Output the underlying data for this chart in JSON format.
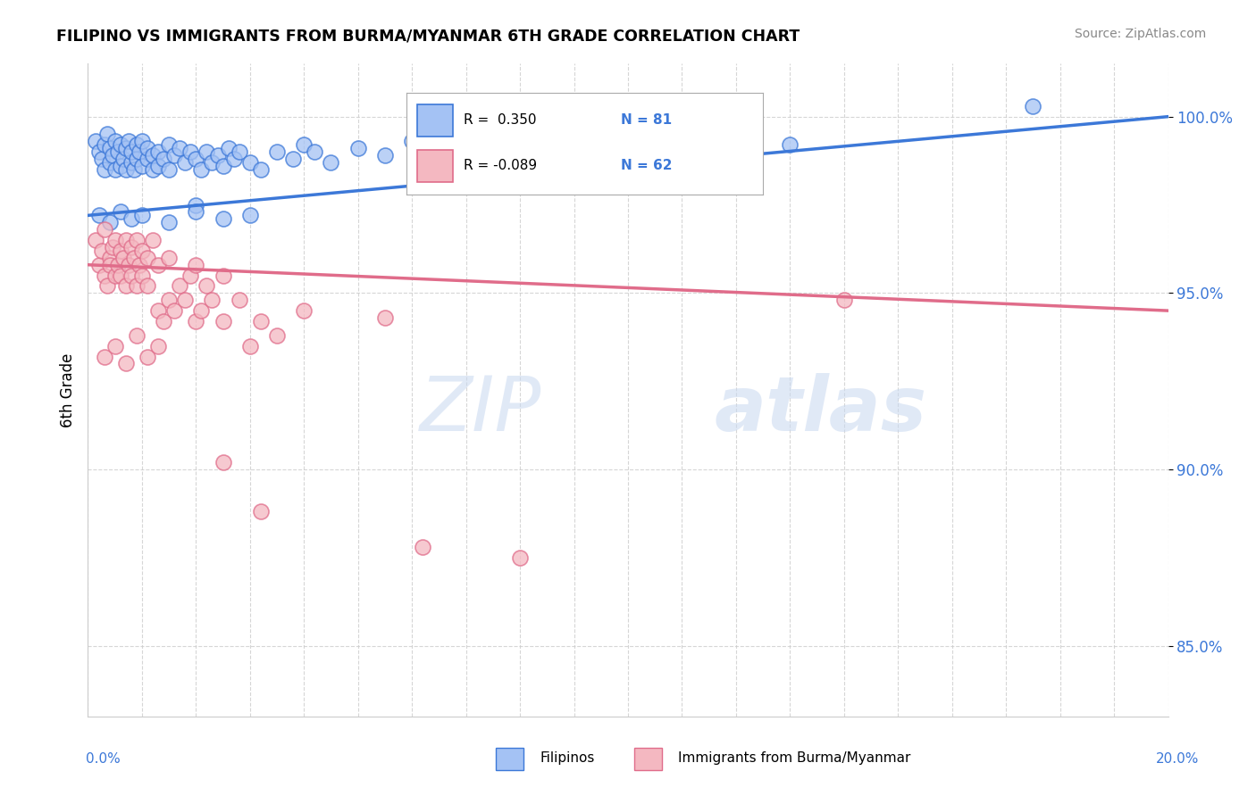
{
  "title": "FILIPINO VS IMMIGRANTS FROM BURMA/MYANMAR 6TH GRADE CORRELATION CHART",
  "source_text": "Source: ZipAtlas.com",
  "ylabel": "6th Grade",
  "xlim": [
    0.0,
    20.0
  ],
  "ylim": [
    83.0,
    101.5
  ],
  "yticks": [
    85.0,
    90.0,
    95.0,
    100.0
  ],
  "ytick_labels": [
    "85.0%",
    "90.0%",
    "95.0%",
    "100.0%"
  ],
  "legend_blue_label": "Filipinos",
  "legend_pink_label": "Immigrants from Burma/Myanmar",
  "blue_R": 0.35,
  "blue_N": 81,
  "pink_R": -0.089,
  "pink_N": 62,
  "blue_color": "#a4c2f4",
  "pink_color": "#f4b8c1",
  "blue_edge_color": "#3c78d8",
  "pink_edge_color": "#e06c8a",
  "blue_line_color": "#3c78d8",
  "pink_line_color": "#e06c8a",
  "tick_label_color": "#3c78d8",
  "blue_scatter": [
    [
      0.15,
      99.3
    ],
    [
      0.2,
      99.0
    ],
    [
      0.25,
      98.8
    ],
    [
      0.3,
      98.5
    ],
    [
      0.3,
      99.2
    ],
    [
      0.35,
      99.5
    ],
    [
      0.4,
      98.7
    ],
    [
      0.4,
      99.1
    ],
    [
      0.45,
      98.9
    ],
    [
      0.5,
      99.3
    ],
    [
      0.5,
      98.5
    ],
    [
      0.55,
      99.0
    ],
    [
      0.6,
      98.6
    ],
    [
      0.6,
      99.2
    ],
    [
      0.65,
      98.8
    ],
    [
      0.7,
      99.1
    ],
    [
      0.7,
      98.5
    ],
    [
      0.75,
      99.3
    ],
    [
      0.8,
      98.7
    ],
    [
      0.8,
      99.0
    ],
    [
      0.85,
      98.5
    ],
    [
      0.9,
      99.2
    ],
    [
      0.9,
      98.8
    ],
    [
      0.95,
      99.0
    ],
    [
      1.0,
      98.6
    ],
    [
      1.0,
      99.3
    ],
    [
      1.1,
      98.8
    ],
    [
      1.1,
      99.1
    ],
    [
      1.2,
      98.5
    ],
    [
      1.2,
      98.9
    ],
    [
      1.3,
      99.0
    ],
    [
      1.3,
      98.6
    ],
    [
      1.4,
      98.8
    ],
    [
      1.5,
      99.2
    ],
    [
      1.5,
      98.5
    ],
    [
      1.6,
      98.9
    ],
    [
      1.7,
      99.1
    ],
    [
      1.8,
      98.7
    ],
    [
      1.9,
      99.0
    ],
    [
      2.0,
      98.8
    ],
    [
      2.0,
      97.5
    ],
    [
      2.1,
      98.5
    ],
    [
      2.2,
      99.0
    ],
    [
      2.3,
      98.7
    ],
    [
      2.4,
      98.9
    ],
    [
      2.5,
      98.6
    ],
    [
      2.6,
      99.1
    ],
    [
      2.7,
      98.8
    ],
    [
      2.8,
      99.0
    ],
    [
      3.0,
      98.7
    ],
    [
      3.2,
      98.5
    ],
    [
      3.5,
      99.0
    ],
    [
      3.8,
      98.8
    ],
    [
      4.0,
      99.2
    ],
    [
      4.2,
      99.0
    ],
    [
      4.5,
      98.7
    ],
    [
      5.0,
      99.1
    ],
    [
      5.5,
      98.9
    ],
    [
      6.0,
      99.3
    ],
    [
      6.5,
      99.0
    ],
    [
      7.0,
      99.2
    ],
    [
      7.5,
      98.8
    ],
    [
      8.0,
      99.1
    ],
    [
      8.5,
      99.3
    ],
    [
      9.0,
      99.0
    ],
    [
      9.5,
      99.2
    ],
    [
      10.0,
      99.5
    ],
    [
      10.5,
      99.1
    ],
    [
      11.0,
      99.3
    ],
    [
      12.0,
      99.0
    ],
    [
      13.0,
      99.2
    ],
    [
      0.2,
      97.2
    ],
    [
      0.4,
      97.0
    ],
    [
      0.6,
      97.3
    ],
    [
      0.8,
      97.1
    ],
    [
      1.0,
      97.2
    ],
    [
      1.5,
      97.0
    ],
    [
      2.0,
      97.3
    ],
    [
      2.5,
      97.1
    ],
    [
      3.0,
      97.2
    ],
    [
      17.5,
      100.3
    ]
  ],
  "pink_scatter": [
    [
      0.15,
      96.5
    ],
    [
      0.2,
      95.8
    ],
    [
      0.25,
      96.2
    ],
    [
      0.3,
      95.5
    ],
    [
      0.3,
      96.8
    ],
    [
      0.35,
      95.2
    ],
    [
      0.4,
      96.0
    ],
    [
      0.4,
      95.8
    ],
    [
      0.45,
      96.3
    ],
    [
      0.5,
      95.5
    ],
    [
      0.5,
      96.5
    ],
    [
      0.55,
      95.8
    ],
    [
      0.6,
      96.2
    ],
    [
      0.6,
      95.5
    ],
    [
      0.65,
      96.0
    ],
    [
      0.7,
      95.2
    ],
    [
      0.7,
      96.5
    ],
    [
      0.75,
      95.8
    ],
    [
      0.8,
      96.3
    ],
    [
      0.8,
      95.5
    ],
    [
      0.85,
      96.0
    ],
    [
      0.9,
      95.2
    ],
    [
      0.9,
      96.5
    ],
    [
      0.95,
      95.8
    ],
    [
      1.0,
      96.2
    ],
    [
      1.0,
      95.5
    ],
    [
      1.1,
      96.0
    ],
    [
      1.1,
      95.2
    ],
    [
      1.2,
      96.5
    ],
    [
      1.3,
      95.8
    ],
    [
      1.3,
      94.5
    ],
    [
      1.4,
      94.2
    ],
    [
      1.5,
      94.8
    ],
    [
      1.5,
      96.0
    ],
    [
      1.6,
      94.5
    ],
    [
      1.7,
      95.2
    ],
    [
      1.8,
      94.8
    ],
    [
      1.9,
      95.5
    ],
    [
      2.0,
      94.2
    ],
    [
      2.0,
      95.8
    ],
    [
      2.1,
      94.5
    ],
    [
      2.2,
      95.2
    ],
    [
      2.3,
      94.8
    ],
    [
      2.5,
      95.5
    ],
    [
      2.5,
      94.2
    ],
    [
      2.8,
      94.8
    ],
    [
      3.0,
      93.5
    ],
    [
      3.2,
      94.2
    ],
    [
      3.5,
      93.8
    ],
    [
      4.0,
      94.5
    ],
    [
      0.3,
      93.2
    ],
    [
      0.5,
      93.5
    ],
    [
      0.7,
      93.0
    ],
    [
      0.9,
      93.8
    ],
    [
      1.1,
      93.2
    ],
    [
      1.3,
      93.5
    ],
    [
      2.5,
      90.2
    ],
    [
      3.2,
      88.8
    ],
    [
      5.5,
      94.3
    ],
    [
      6.2,
      87.8
    ],
    [
      8.0,
      87.5
    ],
    [
      14.0,
      94.8
    ]
  ],
  "blue_trendline": [
    [
      0.0,
      97.2
    ],
    [
      20.0,
      100.0
    ]
  ],
  "pink_trendline": [
    [
      0.0,
      95.8
    ],
    [
      20.0,
      94.5
    ]
  ]
}
